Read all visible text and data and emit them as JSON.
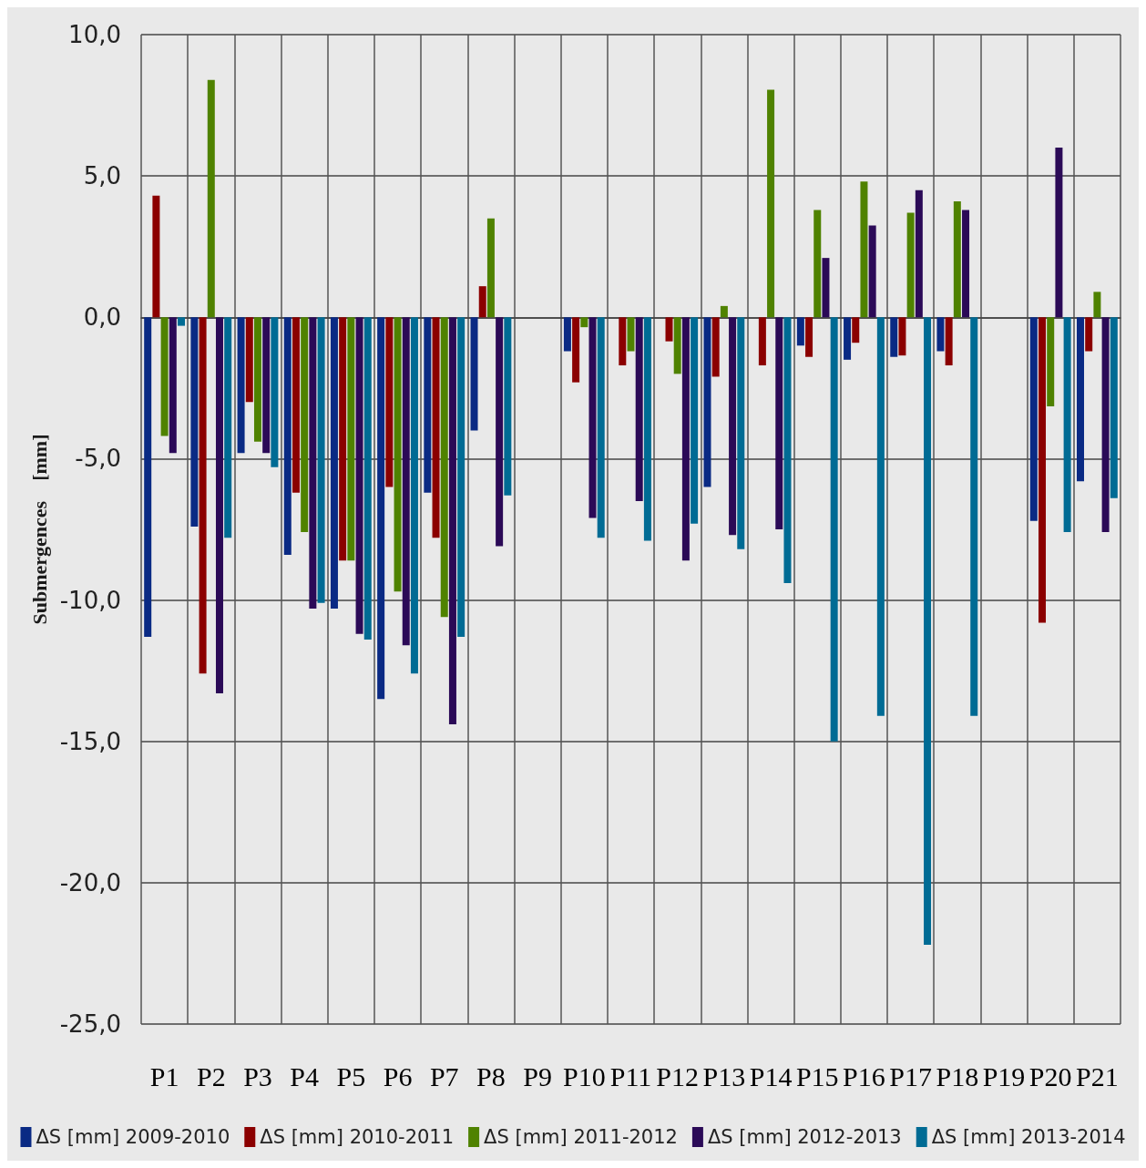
{
  "chart_data": {
    "type": "bar",
    "ylabel": "Submergences    [mm]",
    "categories": [
      "P1",
      "P2",
      "P3",
      "P4",
      "P5",
      "P6",
      "P7",
      "P8",
      "P9",
      "P10",
      "P11",
      "P12",
      "P13",
      "P14",
      "P15",
      "P16",
      "P17",
      "P18",
      "P19",
      "P20",
      "P21"
    ],
    "series": [
      {
        "name": "ΔS [mm] 2009-2010",
        "color": "#0a2a84",
        "values": [
          -11.3,
          -7.4,
          -4.8,
          -8.4,
          -10.3,
          -13.5,
          -6.2,
          -4.0,
          null,
          -1.2,
          null,
          null,
          -6.0,
          null,
          -1.0,
          -1.5,
          -1.4,
          -1.2,
          null,
          -7.2,
          -5.8
        ]
      },
      {
        "name": "ΔS [mm] 2010-2011",
        "color": "#8b0000",
        "values": [
          4.3,
          -12.6,
          -3.0,
          -6.2,
          -8.6,
          -6.0,
          -7.8,
          1.1,
          null,
          -2.3,
          -1.7,
          -0.85,
          -2.1,
          -1.7,
          -1.4,
          -0.9,
          -1.35,
          -1.7,
          null,
          -10.8,
          -1.2
        ]
      },
      {
        "name": "ΔS [mm] 2011-2012",
        "color": "#4f8200",
        "values": [
          -4.2,
          8.4,
          -4.4,
          -7.6,
          -8.6,
          -9.7,
          -10.6,
          3.5,
          null,
          -0.35,
          -1.2,
          -2.0,
          0.4,
          8.05,
          3.8,
          4.8,
          3.7,
          4.1,
          null,
          -3.15,
          0.9
        ]
      },
      {
        "name": "ΔS [mm] 2012-2013",
        "color": "#2b0a57",
        "values": [
          -4.8,
          -13.3,
          -4.8,
          -10.3,
          -11.2,
          -11.6,
          -14.4,
          -8.1,
          null,
          -7.1,
          -6.5,
          -8.6,
          -7.7,
          -7.5,
          2.1,
          3.25,
          4.5,
          3.8,
          null,
          6.0,
          -7.6
        ]
      },
      {
        "name": "ΔS [mm] 2013-2014",
        "color": "#006b94",
        "values": [
          -0.3,
          -7.8,
          -5.3,
          -10.1,
          -11.4,
          -12.6,
          -11.3,
          -6.3,
          null,
          -7.8,
          -7.9,
          -7.3,
          -8.2,
          -9.4,
          -15.0,
          -14.1,
          -22.2,
          -14.1,
          null,
          -7.6,
          -6.4
        ]
      }
    ],
    "ylim": [
      -25,
      10
    ],
    "yticks": [
      {
        "value": -25,
        "label": "-25,0"
      },
      {
        "value": -20,
        "label": "-20,0"
      },
      {
        "value": -15,
        "label": "-15,0"
      },
      {
        "value": -10,
        "label": "-10,0"
      },
      {
        "value": -5,
        "label": "-5,0"
      },
      {
        "value": 0,
        "label": "0,0"
      },
      {
        "value": 5,
        "label": "5,0"
      },
      {
        "value": 10,
        "label": "10,0"
      }
    ],
    "grid": true,
    "legend": "bottom"
  }
}
